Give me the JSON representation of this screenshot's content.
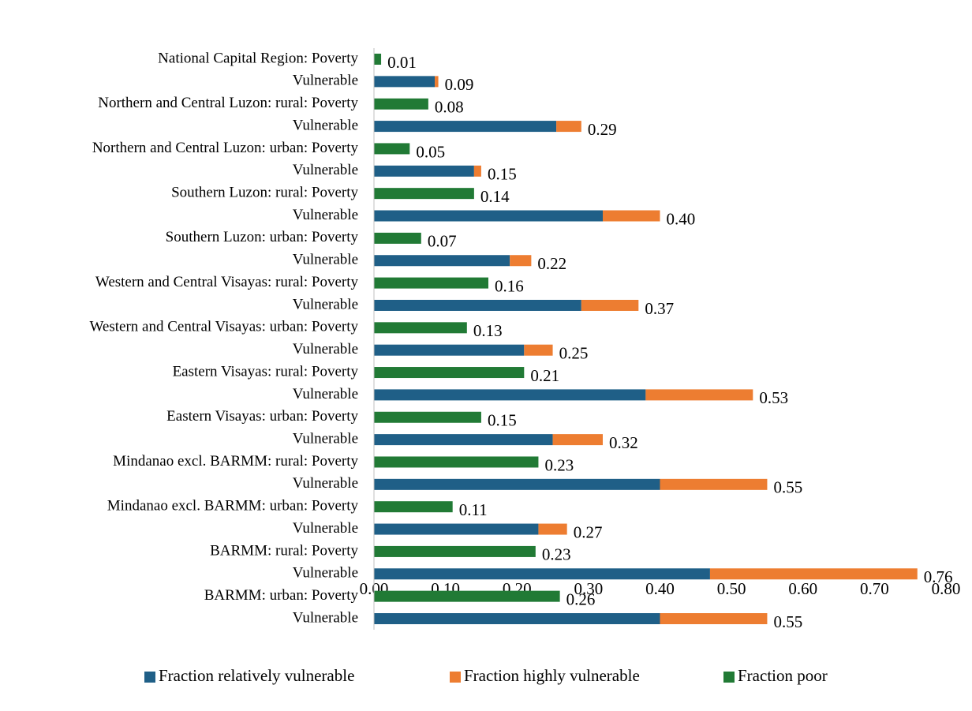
{
  "chart_data": {
    "type": "stacked_barh",
    "categories": [
      "National Capital Region: Poverty",
      "Vulnerable",
      "Northern and Central Luzon: rural: Poverty",
      "Vulnerable",
      "Northern and Central Luzon: urban: Poverty",
      "Vulnerable",
      "Southern Luzon: rural: Poverty",
      "Vulnerable",
      "Southern Luzon: urban: Poverty",
      "Vulnerable",
      "Western and Central Visayas: rural: Poverty",
      "Vulnerable",
      "Western and Central Visayas: urban: Poverty",
      "Vulnerable",
      "Eastern Visayas: rural: Poverty",
      "Vulnerable",
      "Eastern Visayas: urban: Poverty",
      "Vulnerable",
      "Mindanao excl. BARMM: rural: Poverty",
      "Vulnerable",
      "Mindanao excl. BARMM: urban: Poverty",
      "Vulnerable",
      "BARMM: rural: Poverty",
      "Vulnerable",
      "BARMM: urban: Poverty",
      "Vulnerable"
    ],
    "series": [
      {
        "name": "Fraction relatively vulnerable",
        "color": "#1f5f87",
        "values": [
          null,
          0.085,
          null,
          0.255,
          null,
          0.14,
          null,
          0.32,
          null,
          0.19,
          null,
          0.29,
          null,
          0.21,
          null,
          0.38,
          null,
          0.25,
          null,
          0.4,
          null,
          0.23,
          null,
          0.47,
          null,
          0.4
        ]
      },
      {
        "name": "Fraction highly vulnerable",
        "color": "#ed7d31",
        "values": [
          null,
          0.005,
          null,
          0.035,
          null,
          0.01,
          null,
          0.08,
          null,
          0.03,
          null,
          0.08,
          null,
          0.04,
          null,
          0.15,
          null,
          0.07,
          null,
          0.15,
          null,
          0.04,
          null,
          0.29,
          null,
          0.15
        ]
      },
      {
        "name": "Fraction poor",
        "color": "#217a35",
        "values": [
          0.01,
          null,
          0.076,
          null,
          0.05,
          null,
          0.14,
          null,
          0.066,
          null,
          0.16,
          null,
          0.13,
          null,
          0.21,
          null,
          0.15,
          null,
          0.23,
          null,
          0.11,
          null,
          0.226,
          null,
          0.26,
          null
        ]
      }
    ],
    "data_labels": [
      "0.01",
      "0.09",
      "0.08",
      "0.29",
      "0.05",
      "0.15",
      "0.14",
      "0.40",
      "0.07",
      "0.22",
      "0.16",
      "0.37",
      "0.13",
      "0.25",
      "0.21",
      "0.53",
      "0.15",
      "0.32",
      "0.23",
      "0.55",
      "0.11",
      "0.27",
      "0.23",
      "0.76",
      "0.26",
      "0.55"
    ],
    "xlim": [
      0,
      0.8
    ],
    "xticks": [
      {
        "value": 0,
        "label": "0.00"
      },
      {
        "value": 0.1,
        "label": "0.10"
      },
      {
        "value": 0.2,
        "label": "0.20"
      },
      {
        "value": 0.3,
        "label": "0.30"
      },
      {
        "value": 0.4,
        "label": "0.40"
      },
      {
        "value": 0.5,
        "label": "0.50"
      },
      {
        "value": 0.6,
        "label": "0.60"
      },
      {
        "value": 0.7,
        "label": "0.70"
      },
      {
        "value": 0.8,
        "label": "0.80"
      }
    ],
    "legend": "bottom",
    "grid": false
  }
}
